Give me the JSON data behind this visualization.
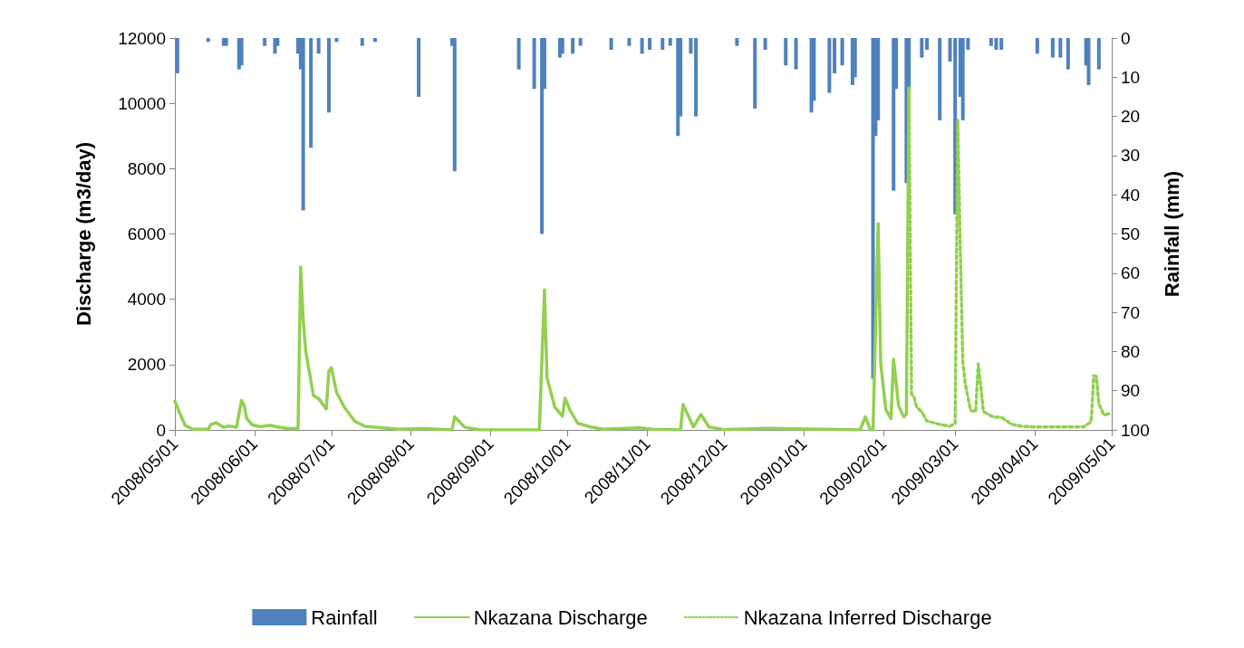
{
  "chart_data": {
    "type": "line",
    "ylabel": "Discharge (m3/day)",
    "y2label": "Rainfall (mm)",
    "xlim": [
      "2008-05-01",
      "2009-05-01"
    ],
    "xticks": [
      {
        "value": "2008-05-01",
        "label": "2008/05/01"
      },
      {
        "value": "2008-06-01",
        "label": "2008/06/01"
      },
      {
        "value": "2008-07-01",
        "label": "2008/07/01"
      },
      {
        "value": "2008-08-01",
        "label": "2008/08/01"
      },
      {
        "value": "2008-09-01",
        "label": "2008/09/01"
      },
      {
        "value": "2008-10-01",
        "label": "2008/10/01"
      },
      {
        "value": "2008-11-01",
        "label": "2008/11/01"
      },
      {
        "value": "2008-12-01",
        "label": "2008/12/01"
      },
      {
        "value": "2009-01-01",
        "label": "2009/01/01"
      },
      {
        "value": "2009-02-01",
        "label": "2009/02/01"
      },
      {
        "value": "2009-03-01",
        "label": "2009/03/01"
      },
      {
        "value": "2009-04-01",
        "label": "2009/04/01"
      },
      {
        "value": "2009-05-01",
        "label": "2009/05/01"
      }
    ],
    "ylim": [
      0,
      12000
    ],
    "yticks": [
      0,
      2000,
      4000,
      6000,
      8000,
      10000,
      12000
    ],
    "y2lim": [
      100,
      0
    ],
    "y2ticks": [
      0,
      10,
      20,
      30,
      40,
      50,
      60,
      70,
      80,
      90,
      100
    ],
    "grid": false,
    "legend": "bottom",
    "marker": "none",
    "series": [
      {
        "name": "Rainfall",
        "type": "bar",
        "axis": "y2",
        "color": "#4f81bd",
        "x": [
          "2008-05-02",
          "2008-05-14",
          "2008-05-20",
          "2008-05-21",
          "2008-05-26",
          "2008-05-27",
          "2008-06-05",
          "2008-06-09",
          "2008-06-10",
          "2008-06-18",
          "2008-06-19",
          "2008-06-20",
          "2008-06-23",
          "2008-06-26",
          "2008-06-30",
          "2008-07-03",
          "2008-07-13",
          "2008-07-18",
          "2008-08-04",
          "2008-08-17",
          "2008-08-18",
          "2008-09-12",
          "2008-09-18",
          "2008-09-21",
          "2008-09-22",
          "2008-09-28",
          "2008-09-29",
          "2008-10-03",
          "2008-10-06",
          "2008-10-18",
          "2008-10-25",
          "2008-10-30",
          "2008-11-02",
          "2008-11-07",
          "2008-11-10",
          "2008-11-13",
          "2008-11-14",
          "2008-11-18",
          "2008-11-20",
          "2008-12-06",
          "2008-12-13",
          "2008-12-17",
          "2008-12-25",
          "2008-12-29",
          "2009-01-04",
          "2009-01-05",
          "2009-01-11",
          "2009-01-13",
          "2009-01-16",
          "2009-01-20",
          "2009-01-21",
          "2009-01-28",
          "2009-01-29",
          "2009-01-30",
          "2009-02-05",
          "2009-02-06",
          "2009-02-10",
          "2009-02-11",
          "2009-02-16",
          "2009-02-18",
          "2009-02-23",
          "2009-02-27",
          "2009-03-01",
          "2009-03-03",
          "2009-03-04",
          "2009-03-06",
          "2009-03-15",
          "2009-03-17",
          "2009-03-19",
          "2009-04-02",
          "2009-04-08",
          "2009-04-11",
          "2009-04-14",
          "2009-04-21",
          "2009-04-22",
          "2009-04-26"
        ],
        "values": [
          9,
          1,
          2,
          2,
          8,
          7,
          2,
          4,
          2,
          4,
          8,
          44,
          28,
          4,
          19,
          1,
          2,
          1,
          15,
          2,
          34,
          8,
          13,
          50,
          13,
          5,
          4,
          4,
          2,
          3,
          2,
          4,
          3,
          3,
          2,
          25,
          20,
          4,
          20,
          2,
          18,
          3,
          7,
          8,
          19,
          16,
          14,
          9,
          7,
          12,
          10,
          87,
          25,
          21,
          39,
          13,
          37,
          14,
          5,
          3,
          21,
          6,
          45,
          15,
          21,
          3,
          2,
          3,
          3,
          4,
          5,
          5,
          8,
          7,
          12,
          8
        ]
      },
      {
        "name": "Nkazana Discharge",
        "color": "#92d050",
        "line_style": "solid",
        "x": [
          "2008-05-01",
          "2008-05-03",
          "2008-05-05",
          "2008-05-08",
          "2008-05-14",
          "2008-05-15",
          "2008-05-17",
          "2008-05-20",
          "2008-05-22",
          "2008-05-25",
          "2008-05-27",
          "2008-05-28",
          "2008-05-29",
          "2008-05-31",
          "2008-06-03",
          "2008-06-07",
          "2008-06-10",
          "2008-06-14",
          "2008-06-18",
          "2008-06-19",
          "2008-06-20",
          "2008-06-21",
          "2008-06-24",
          "2008-06-26",
          "2008-06-29",
          "2008-06-30",
          "2008-07-01",
          "2008-07-03",
          "2008-07-06",
          "2008-07-10",
          "2008-07-14",
          "2008-07-20",
          "2008-07-27",
          "2008-08-06",
          "2008-08-17",
          "2008-08-18",
          "2008-08-22",
          "2008-08-28",
          "2008-09-20",
          "2008-09-22",
          "2008-09-23",
          "2008-09-26",
          "2008-09-29",
          "2008-09-30",
          "2008-10-02",
          "2008-10-05",
          "2008-10-10",
          "2008-10-15",
          "2008-10-29",
          "2008-11-03",
          "2008-11-14",
          "2008-11-15",
          "2008-11-19",
          "2008-11-22",
          "2008-11-25",
          "2008-12-01",
          "2008-12-17",
          "2009-01-23",
          "2009-01-25",
          "2009-01-27",
          "2009-01-28",
          "2009-01-30",
          "2009-01-31",
          "2009-02-02",
          "2009-02-04",
          "2009-02-05",
          "2009-02-07",
          "2009-02-09",
          "2009-02-10",
          "2009-02-11"
        ],
        "values": [
          880,
          500,
          140,
          20,
          20,
          160,
          220,
          80,
          120,
          80,
          900,
          750,
          350,
          160,
          100,
          140,
          90,
          40,
          40,
          4990,
          3370,
          2400,
          1050,
          960,
          640,
          1800,
          1900,
          1150,
          700,
          270,
          110,
          70,
          20,
          40,
          0,
          400,
          80,
          0,
          0,
          4290,
          1600,
          700,
          420,
          970,
          590,
          200,
          90,
          20,
          60,
          20,
          0,
          780,
          90,
          470,
          90,
          10,
          50,
          0,
          400,
          0,
          0,
          6320,
          2020,
          620,
          350,
          2160,
          720,
          400,
          480,
          10470
        ]
      },
      {
        "name": "Nkazana Inferred Discharge",
        "color": "#92d050",
        "line_style": "dotted",
        "x": [
          "2009-02-11",
          "2009-02-12",
          "2009-02-13",
          "2009-02-14",
          "2009-02-16",
          "2009-02-18",
          "2009-02-23",
          "2009-02-27",
          "2009-03-01",
          "2009-03-02",
          "2009-03-03",
          "2009-03-04",
          "2009-03-05",
          "2009-03-06",
          "2009-03-07",
          "2009-03-09",
          "2009-03-10",
          "2009-03-11",
          "2009-03-12",
          "2009-03-16",
          "2009-03-19",
          "2009-03-23",
          "2009-03-27",
          "2009-04-01",
          "2009-04-20",
          "2009-04-23",
          "2009-04-24",
          "2009-04-25",
          "2009-04-26",
          "2009-04-28",
          "2009-04-30"
        ],
        "values": [
          10470,
          1100,
          1000,
          700,
          550,
          270,
          170,
          110,
          200,
          9500,
          5540,
          2080,
          1380,
          1000,
          600,
          560,
          2020,
          1340,
          560,
          390,
          390,
          170,
          110,
          90,
          90,
          250,
          1660,
          1640,
          800,
          450,
          500
        ]
      }
    ]
  }
}
